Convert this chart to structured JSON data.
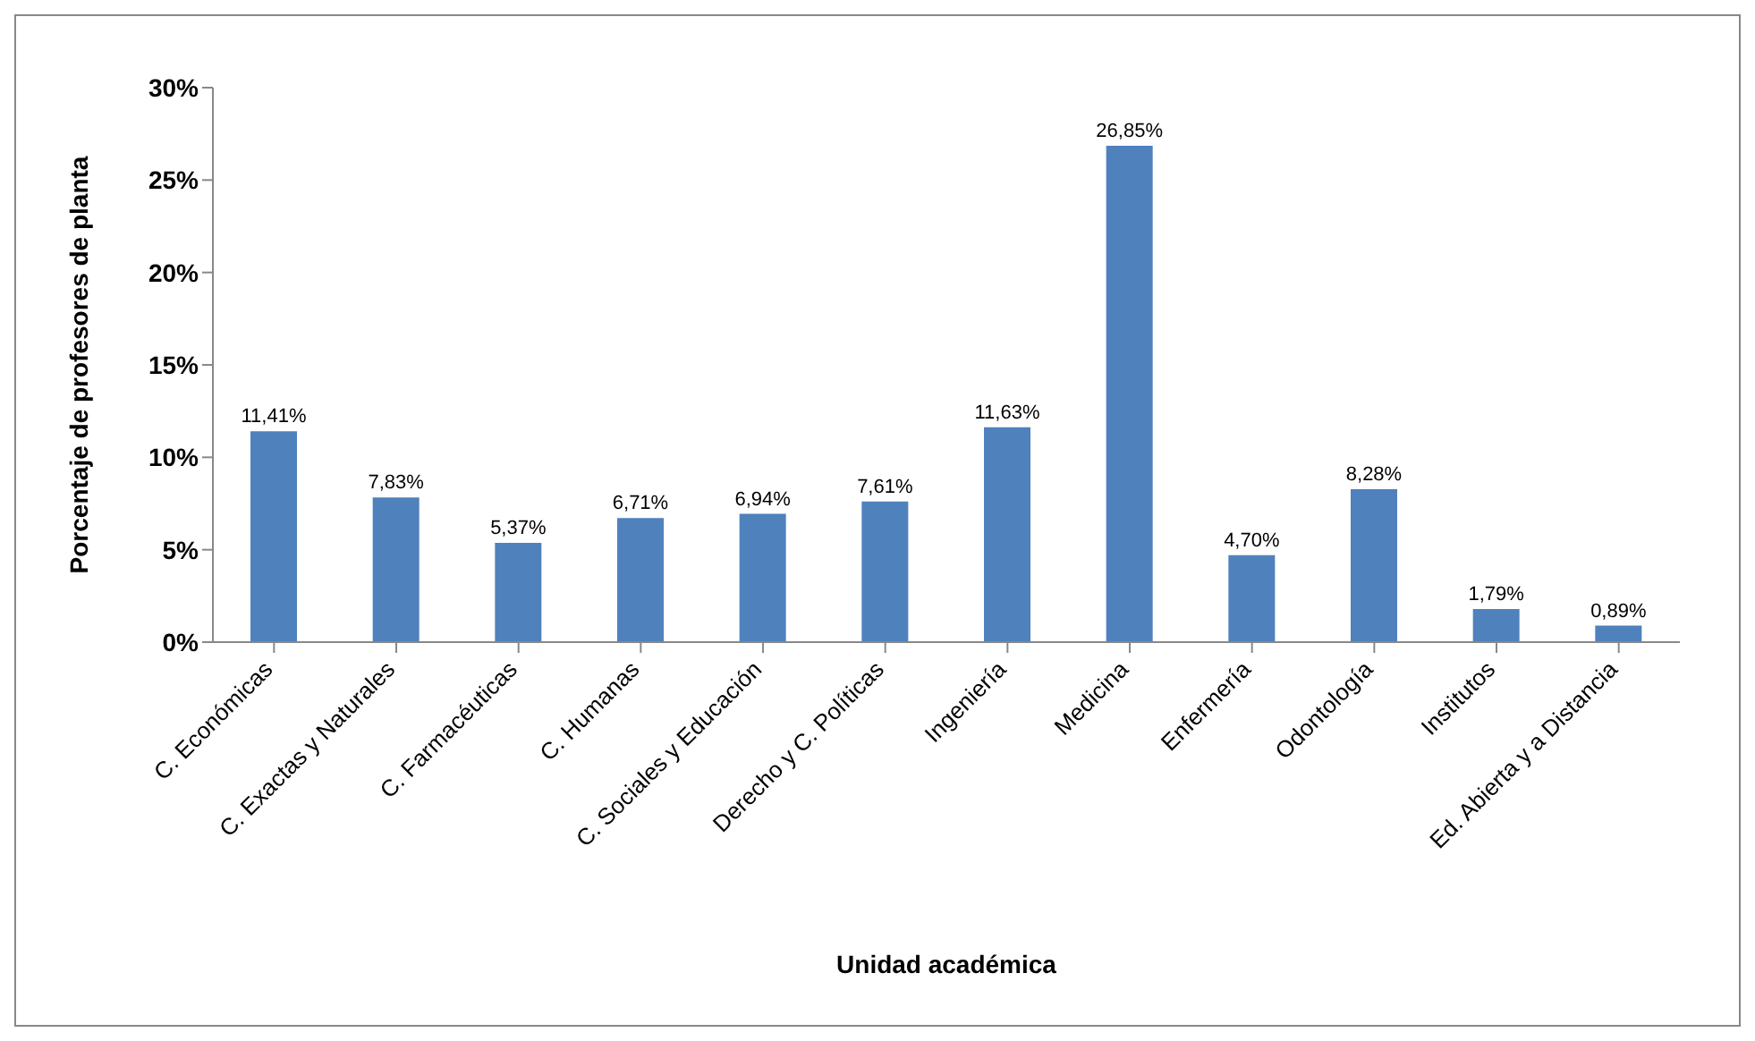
{
  "chart_data": {
    "type": "bar",
    "xlabel": "Unidad académica",
    "ylabel": "Porcentaje  de  profesores  de planta",
    "categories": [
      "C. Económicas",
      "C. Exactas y Naturales",
      "C. Farmacéuticas",
      "C. Humanas",
      "C. Sociales y Educación",
      "Derecho y C. Políticas",
      "Ingeniería",
      "Medicina",
      "Enfermería",
      "Odontología",
      "Institutos",
      "Ed. Abierta y a Distancia"
    ],
    "values": [
      11.41,
      7.83,
      5.37,
      6.71,
      6.94,
      7.61,
      11.63,
      26.85,
      4.7,
      8.28,
      1.79,
      0.89
    ],
    "value_labels": [
      "11,41%",
      "7,83%",
      "5,37%",
      "6,71%",
      "6,94%",
      "7,61%",
      "11,63%",
      "26,85%",
      "4,70%",
      "8,28%",
      "1,79%",
      "0,89%"
    ],
    "color": "#4f81bd",
    "ylim": [
      0,
      30
    ],
    "yticks": [
      {
        "value": 0,
        "label": "0%"
      },
      {
        "value": 5,
        "label": "5%"
      },
      {
        "value": 10,
        "label": "10%"
      },
      {
        "value": 15,
        "label": "15%"
      },
      {
        "value": 20,
        "label": "20%"
      },
      {
        "value": 25,
        "label": "25%"
      },
      {
        "value": 30,
        "label": "30%"
      }
    ],
    "grid": false
  }
}
